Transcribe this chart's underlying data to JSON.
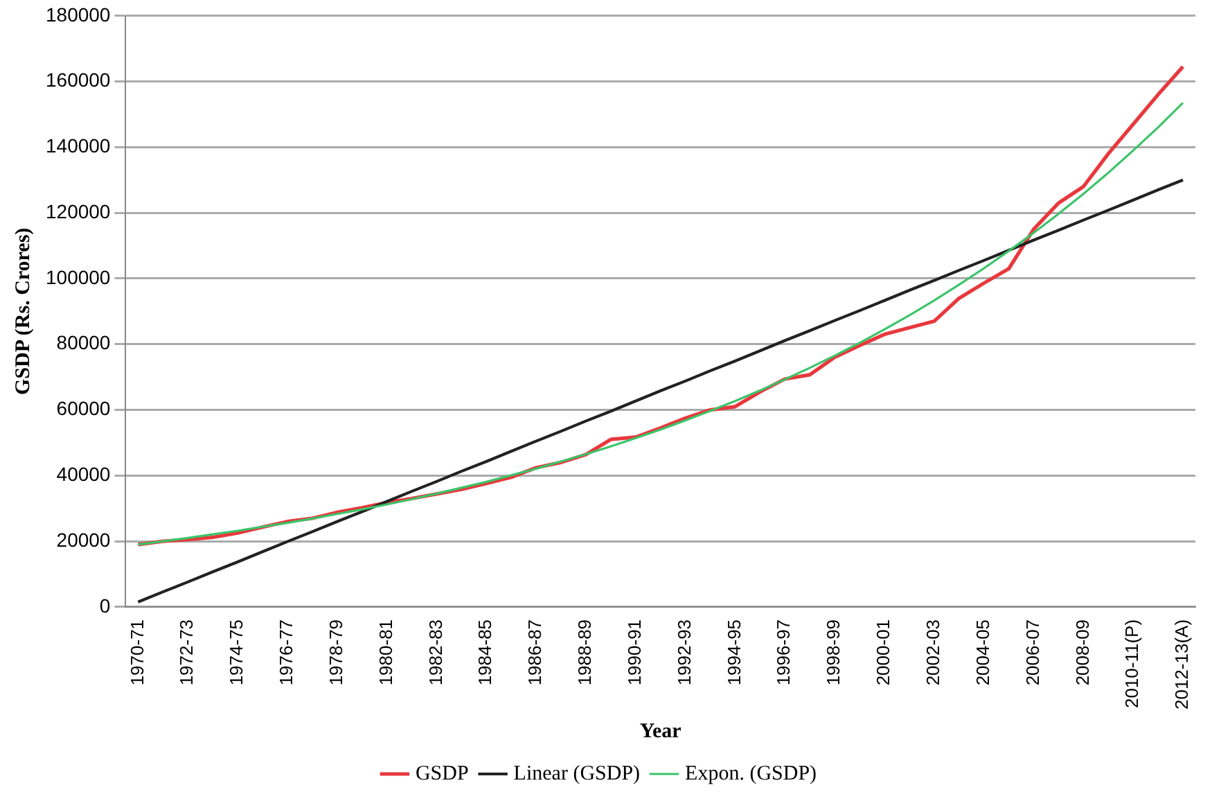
{
  "chart_data": {
    "type": "line",
    "xlabel": "Year",
    "ylabel": "GSDP (Rs. Crores)",
    "categories": [
      "1970-71",
      null,
      "1972-73",
      null,
      "1974-75",
      null,
      "1976-77",
      null,
      "1978-79",
      null,
      "1980-81",
      null,
      "1982-83",
      null,
      "1984-85",
      null,
      "1986-87",
      null,
      "1988-89",
      null,
      "1990-91",
      null,
      "1992-93",
      null,
      "1994-95",
      null,
      "1996-97",
      null,
      "1998-99",
      null,
      "2000-01",
      null,
      "2002-03",
      null,
      "2004-05",
      null,
      "2006-07",
      null,
      "2008-09",
      null,
      "2010-11(P)",
      null,
      "2012-13(A)"
    ],
    "series": [
      {
        "name": "GSDP",
        "color": "#e8383d",
        "values": [
          19000,
          20000,
          20500,
          21200,
          22500,
          24300,
          26000,
          27000,
          28800,
          30200,
          31800,
          33000,
          34400,
          35800,
          37600,
          39500,
          42400,
          44000,
          46400,
          51000,
          51700,
          54500,
          57500,
          60000,
          61000,
          65500,
          69400,
          70700,
          76000,
          79600,
          83000,
          85000,
          87000,
          94000,
          98600,
          103000,
          115000,
          123000,
          128000,
          138000,
          147000,
          156000,
          164500
        ]
      },
      {
        "name": "Linear (GSDP)",
        "color": "#222222",
        "values": [
          1500,
          4600,
          7600,
          10700,
          13700,
          16800,
          19900,
          22900,
          26000,
          29000,
          32100,
          35200,
          38200,
          41300,
          44300,
          47400,
          50500,
          53500,
          56600,
          59600,
          62700,
          65800,
          68800,
          71900,
          74900,
          78000,
          81100,
          84100,
          87200,
          90200,
          93300,
          96400,
          99400,
          102500,
          105500,
          108600,
          111700,
          114700,
          117800,
          120800,
          123900,
          127000,
          130000
        ]
      },
      {
        "name": "Expon. (GSDP)",
        "color": "#3cc46a",
        "values": [
          19000,
          20000,
          21000,
          22100,
          23200,
          24400,
          25600,
          26900,
          28300,
          29700,
          31200,
          32800,
          34500,
          36300,
          38100,
          40100,
          42100,
          44300,
          46500,
          48900,
          51400,
          54000,
          56800,
          59700,
          62700,
          65900,
          69300,
          72800,
          76500,
          80400,
          84500,
          88800,
          93300,
          98100,
          103100,
          108400,
          113900,
          119700,
          125800,
          132200,
          139000,
          146000,
          153500
        ]
      }
    ],
    "ylim": [
      0,
      180000
    ],
    "yticks": [
      0,
      20000,
      40000,
      60000,
      80000,
      100000,
      120000,
      140000,
      160000,
      180000
    ],
    "grid": "y",
    "legend": "bottom",
    "marker": "none",
    "line_style": "solid"
  }
}
